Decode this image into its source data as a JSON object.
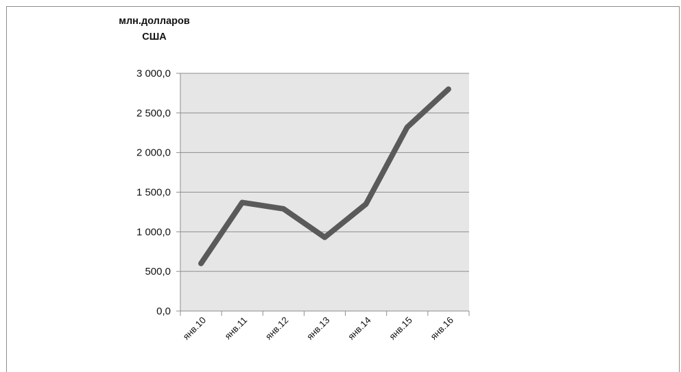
{
  "chart_data": {
    "type": "line",
    "ylabel": [
      "млн.долларов",
      "США"
    ],
    "xlabel": "",
    "title": "",
    "categories": [
      "янв.10",
      "янв.11",
      "янв.12",
      "янв.13",
      "янв.14",
      "янв.15",
      "янв.16"
    ],
    "series": [
      {
        "values": [
          600,
          1370,
          1290,
          930,
          1350,
          2320,
          2800
        ]
      }
    ],
    "ylim": [
      0,
      3000
    ],
    "yticks": [
      "0,0",
      "500,0",
      "1 000,0",
      "1 500,0",
      "2 000,0",
      "2 500,0",
      "3 000,0"
    ],
    "ytick_values": [
      0,
      500,
      1000,
      1500,
      2000,
      2500,
      3000
    ],
    "grid": true,
    "legend": "none",
    "colors": {
      "plot_background": "#e6e6e6",
      "line": "#5a5a5a",
      "gridline": "#8c8c8c"
    }
  }
}
